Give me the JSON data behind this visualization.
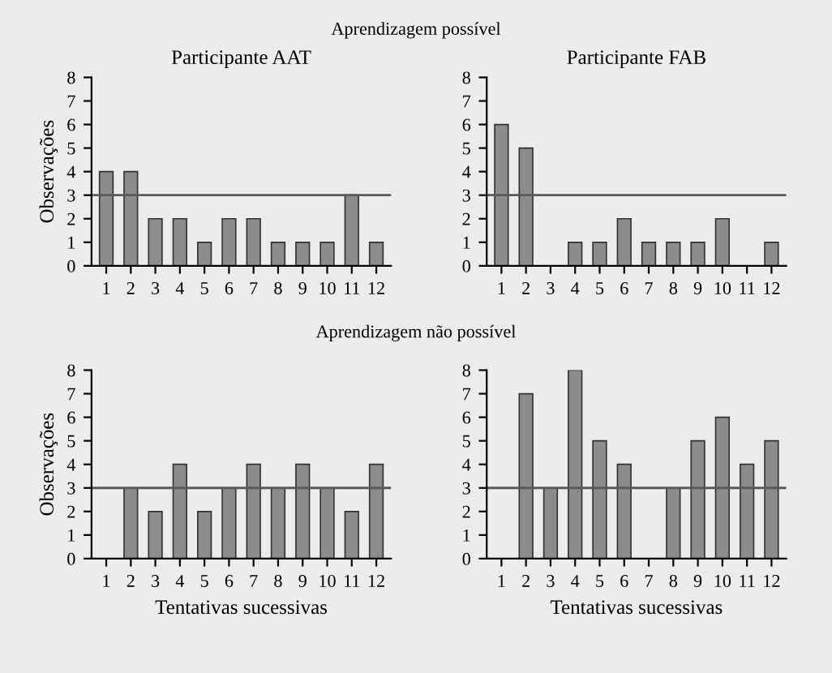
{
  "chart_data": [
    {
      "type": "bar",
      "title": "Participante AAT",
      "ylabel": "Observações",
      "annotations": [
        "Aprendizagem possível"
      ],
      "categories": [
        "1",
        "2",
        "3",
        "4",
        "5",
        "6",
        "7",
        "8",
        "9",
        "10",
        "11",
        "12"
      ],
      "values": [
        4,
        4,
        2,
        2,
        1,
        2,
        2,
        1,
        1,
        1,
        3,
        1
      ],
      "color": "#8c8c8c",
      "ylim": [
        0,
        8
      ],
      "yticks": [
        0,
        1,
        2,
        3,
        4,
        5,
        6,
        7,
        8
      ],
      "ref_lines": [
        {
          "axis": "y",
          "value": 3,
          "color": "#5a5a5a"
        }
      ],
      "grid": false,
      "legend": false
    },
    {
      "type": "bar",
      "title": "Participante FAB",
      "categories": [
        "1",
        "2",
        "3",
        "4",
        "5",
        "6",
        "7",
        "8",
        "9",
        "10",
        "11",
        "12"
      ],
      "values": [
        6,
        5,
        0,
        1,
        1,
        2,
        1,
        1,
        1,
        2,
        0,
        1
      ],
      "color": "#8c8c8c",
      "ylim": [
        0,
        8
      ],
      "yticks": [
        0,
        1,
        2,
        3,
        4,
        5,
        6,
        7,
        8
      ],
      "ref_lines": [
        {
          "axis": "y",
          "value": 3,
          "color": "#5a5a5a"
        }
      ],
      "grid": false,
      "legend": false
    },
    {
      "type": "bar",
      "ylabel": "Observações",
      "xlabel": "Tentativas sucessivas",
      "annotations": [
        "Aprendizagem não possível"
      ],
      "categories": [
        "1",
        "2",
        "3",
        "4",
        "5",
        "6",
        "7",
        "8",
        "9",
        "10",
        "11",
        "12"
      ],
      "values": [
        0,
        3,
        2,
        4,
        2,
        3,
        4,
        3,
        4,
        3,
        2,
        4
      ],
      "color": "#8c8c8c",
      "ylim": [
        0,
        8
      ],
      "yticks": [
        0,
        1,
        2,
        3,
        4,
        5,
        6,
        7,
        8
      ],
      "ref_lines": [
        {
          "axis": "y",
          "value": 3,
          "color": "#5a5a5a"
        }
      ],
      "grid": false,
      "legend": false
    },
    {
      "type": "bar",
      "xlabel": "Tentativas sucessivas",
      "categories": [
        "1",
        "2",
        "3",
        "4",
        "5",
        "6",
        "7",
        "8",
        "9",
        "10",
        "11",
        "12"
      ],
      "values": [
        0,
        7,
        3,
        8,
        5,
        4,
        0,
        3,
        5,
        6,
        4,
        5
      ],
      "color": "#8c8c8c",
      "ylim": [
        0,
        8
      ],
      "yticks": [
        0,
        1,
        2,
        3,
        4,
        5,
        6,
        7,
        8
      ],
      "ref_lines": [
        {
          "axis": "y",
          "value": 3,
          "color": "#5a5a5a"
        }
      ],
      "grid": false,
      "legend": false
    }
  ]
}
